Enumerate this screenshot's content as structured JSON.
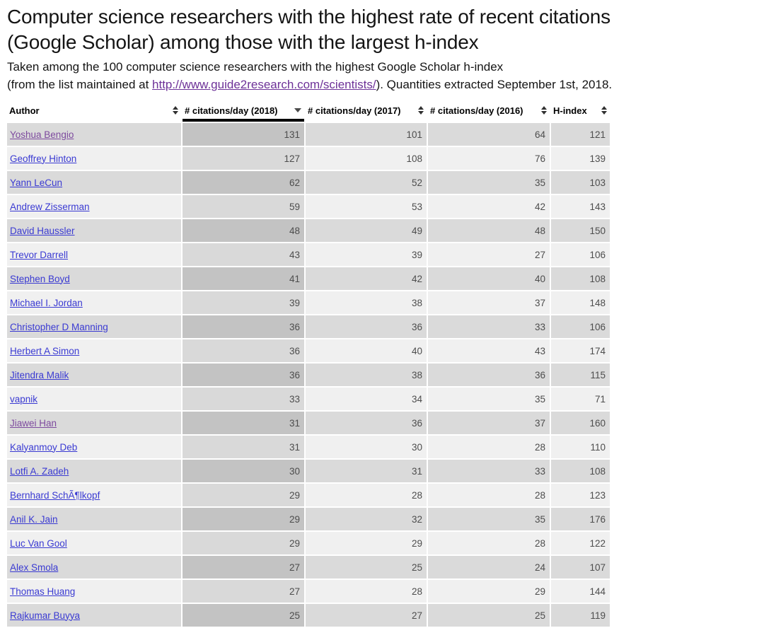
{
  "page": {
    "title_line1": "Computer science researchers with the highest rate of recent citations",
    "title_line2": "(Google Scholar) among those with the largest h-index",
    "subtitle_line1": "Taken among the 100 computer science researchers with the highest Google Scholar h-index",
    "subtitle_line2_prefix": "(from the list maintained at ",
    "subtitle_link_text": "http://www.guide2research.com/scientists/",
    "subtitle_line2_suffix": "). Quantities extracted September 1st, 2018."
  },
  "colors": {
    "link_blue": "#3a3ad2",
    "link_visited_purple": "#7d4a9e",
    "subtitle_link_purple": "#6d3198",
    "row_odd": "#dadada",
    "row_even": "#f0f0f0",
    "sorted_col_odd": "#c3c3c3",
    "sorted_col_even": "#d9d9d9",
    "sorted_header_underline": "#000000",
    "number_text": "#4d4d4d"
  },
  "table": {
    "columns": [
      {
        "label": "Author",
        "sort": "both"
      },
      {
        "label": "# citations/day (2018)",
        "sort": "desc"
      },
      {
        "label": "# citations/day (2017)",
        "sort": "both"
      },
      {
        "label": "# citations/day (2016)",
        "sort": "both"
      },
      {
        "label": "H-index",
        "sort": "both"
      }
    ],
    "rows": [
      {
        "author": "Yoshua Bengio",
        "visited": true,
        "c2018": 131,
        "c2017": 101,
        "c2016": 64,
        "hindex": 121
      },
      {
        "author": "Geoffrey Hinton",
        "visited": false,
        "c2018": 127,
        "c2017": 108,
        "c2016": 76,
        "hindex": 139
      },
      {
        "author": "Yann LeCun",
        "visited": false,
        "c2018": 62,
        "c2017": 52,
        "c2016": 35,
        "hindex": 103
      },
      {
        "author": "Andrew Zisserman",
        "visited": false,
        "c2018": 59,
        "c2017": 53,
        "c2016": 42,
        "hindex": 143
      },
      {
        "author": "David Haussler",
        "visited": false,
        "c2018": 48,
        "c2017": 49,
        "c2016": 48,
        "hindex": 150
      },
      {
        "author": "Trevor Darrell",
        "visited": false,
        "c2018": 43,
        "c2017": 39,
        "c2016": 27,
        "hindex": 106
      },
      {
        "author": "Stephen Boyd",
        "visited": false,
        "c2018": 41,
        "c2017": 42,
        "c2016": 40,
        "hindex": 108
      },
      {
        "author": "Michael I. Jordan",
        "visited": false,
        "c2018": 39,
        "c2017": 38,
        "c2016": 37,
        "hindex": 148
      },
      {
        "author": "Christopher D Manning",
        "visited": false,
        "c2018": 36,
        "c2017": 36,
        "c2016": 33,
        "hindex": 106
      },
      {
        "author": "Herbert A Simon",
        "visited": false,
        "c2018": 36,
        "c2017": 40,
        "c2016": 43,
        "hindex": 174
      },
      {
        "author": "Jitendra Malik",
        "visited": false,
        "c2018": 36,
        "c2017": 38,
        "c2016": 36,
        "hindex": 115
      },
      {
        "author": "vapnik",
        "visited": false,
        "c2018": 33,
        "c2017": 34,
        "c2016": 35,
        "hindex": 71
      },
      {
        "author": "Jiawei Han",
        "visited": true,
        "c2018": 31,
        "c2017": 36,
        "c2016": 37,
        "hindex": 160
      },
      {
        "author": "Kalyanmoy Deb",
        "visited": false,
        "c2018": 31,
        "c2017": 30,
        "c2016": 28,
        "hindex": 110
      },
      {
        "author": "Lotfi A. Zadeh",
        "visited": false,
        "c2018": 30,
        "c2017": 31,
        "c2016": 33,
        "hindex": 108
      },
      {
        "author": "Bernhard SchÃ¶lkopf",
        "visited": false,
        "c2018": 29,
        "c2017": 28,
        "c2016": 28,
        "hindex": 123
      },
      {
        "author": "Anil K. Jain",
        "visited": false,
        "c2018": 29,
        "c2017": 32,
        "c2016": 35,
        "hindex": 176
      },
      {
        "author": "Luc Van Gool",
        "visited": false,
        "c2018": 29,
        "c2017": 29,
        "c2016": 28,
        "hindex": 122
      },
      {
        "author": "Alex Smola",
        "visited": false,
        "c2018": 27,
        "c2017": 25,
        "c2016": 24,
        "hindex": 107
      },
      {
        "author": "Thomas Huang",
        "visited": false,
        "c2018": 27,
        "c2017": 28,
        "c2016": 29,
        "hindex": 144
      },
      {
        "author": "Rajkumar Buyya",
        "visited": false,
        "c2018": 25,
        "c2017": 27,
        "c2016": 25,
        "hindex": 119
      }
    ]
  }
}
